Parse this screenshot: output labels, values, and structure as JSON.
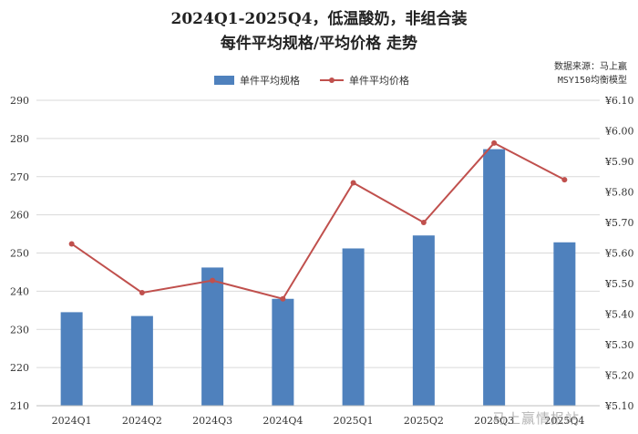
{
  "title_line1": "2024Q1-2025Q4，低温酸奶，非组合装",
  "title_line2": "每件平均规格/平均价格 走势",
  "source_line1": "数据来源：马上赢",
  "source_line2": "MSY150均衡模型",
  "watermark": "马上赢情报站",
  "colors": {
    "bar": "#4f81bd",
    "line": "#c0504d",
    "grid": "#d9d9d9"
  },
  "chart_data": {
    "type": "bar",
    "title": "2024Q1-2025Q4，低温酸奶，非组合装 每件平均规格/平均价格 走势",
    "categories": [
      "2024Q1",
      "2024Q2",
      "2024Q3",
      "2024Q4",
      "2025Q1",
      "2025Q2",
      "2025Q3",
      "2025Q4"
    ],
    "series": [
      {
        "name": "单件平均规格",
        "type": "bar",
        "axis": "left",
        "values": [
          234.5,
          233.5,
          246.2,
          238.0,
          251.2,
          254.6,
          277.2,
          252.8
        ]
      },
      {
        "name": "单件平均价格",
        "type": "line",
        "axis": "right",
        "values": [
          5.63,
          5.47,
          5.51,
          5.45,
          5.83,
          5.7,
          5.96,
          5.84
        ]
      }
    ],
    "y_left": {
      "min": 210,
      "max": 290,
      "ticks": [
        "210",
        "220",
        "230",
        "240",
        "250",
        "260",
        "270",
        "280",
        "290"
      ]
    },
    "y_right": {
      "min": 5.1,
      "max": 6.1,
      "ticks": [
        "¥5.10",
        "¥5.20",
        "¥5.30",
        "¥5.40",
        "¥5.50",
        "¥5.60",
        "¥5.70",
        "¥5.80",
        "¥5.90",
        "¥6.00",
        "¥6.10"
      ]
    },
    "grid": true,
    "legend_position": "top"
  }
}
